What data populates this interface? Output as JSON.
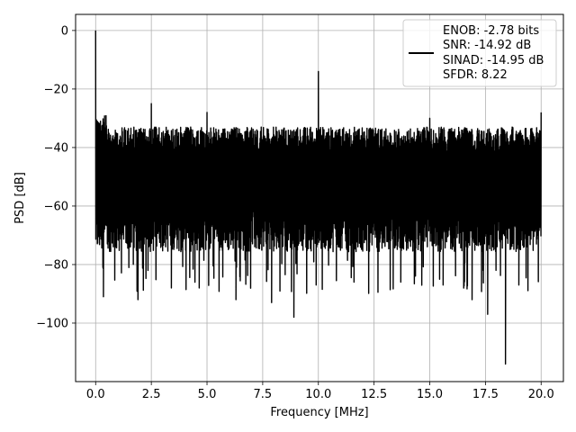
{
  "chart_data": {
    "type": "line",
    "xlabel": "Frequency [MHz]",
    "ylabel": "PSD [dB]",
    "xlim": [
      -0.9,
      21.0
    ],
    "ylim": [
      -120.0,
      5.5
    ],
    "x_ticks": [
      0.0,
      2.5,
      5.0,
      7.5,
      10.0,
      12.5,
      15.0,
      17.5,
      20.0
    ],
    "x_tick_labels": [
      "0.0",
      "2.5",
      "5.0",
      "7.5",
      "10.0",
      "12.5",
      "15.0",
      "17.5",
      "20.0"
    ],
    "y_ticks": [
      0,
      -20,
      -40,
      -60,
      -80,
      -100
    ],
    "y_tick_labels": [
      "0",
      "−20",
      "−40",
      "−60",
      "−80",
      "−100"
    ],
    "grid": true,
    "legend_position": "upper right",
    "colors": {
      "line": "#000000",
      "grid": "#b0b0b0",
      "background": "#ffffff"
    },
    "series": [
      {
        "legend_lines": [
          "ENOB: -2.78 bits",
          "SNR: -14.92 dB",
          "SINAD: -14.95 dB",
          "SFDR: 8.22"
        ],
        "noise_band": {
          "x_start": 0.0,
          "x_end": 20.0,
          "upper": -33,
          "lower": -70,
          "floor_dips_to": -90
        },
        "spurs": [
          {
            "x": 0.0,
            "y": 0.0
          },
          {
            "x": 2.5,
            "y": -25
          },
          {
            "x": 5.0,
            "y": -28
          },
          {
            "x": 10.0,
            "y": -14
          },
          {
            "x": 15.0,
            "y": -30
          },
          {
            "x": 20.0,
            "y": -28
          }
        ],
        "deep_dips": [
          {
            "x": 0.35,
            "y": -91
          },
          {
            "x": 1.9,
            "y": -92
          },
          {
            "x": 2.35,
            "y": -82
          },
          {
            "x": 3.4,
            "y": -88
          },
          {
            "x": 4.65,
            "y": -88
          },
          {
            "x": 6.3,
            "y": -92
          },
          {
            "x": 7.9,
            "y": -93
          },
          {
            "x": 8.9,
            "y": -98
          },
          {
            "x": 9.9,
            "y": -87
          },
          {
            "x": 11.6,
            "y": -86
          },
          {
            "x": 13.7,
            "y": -86
          },
          {
            "x": 15.6,
            "y": -87
          },
          {
            "x": 16.9,
            "y": -92
          },
          {
            "x": 17.6,
            "y": -97
          },
          {
            "x": 18.4,
            "y": -114
          },
          {
            "x": 19.0,
            "y": -87
          }
        ]
      }
    ]
  }
}
